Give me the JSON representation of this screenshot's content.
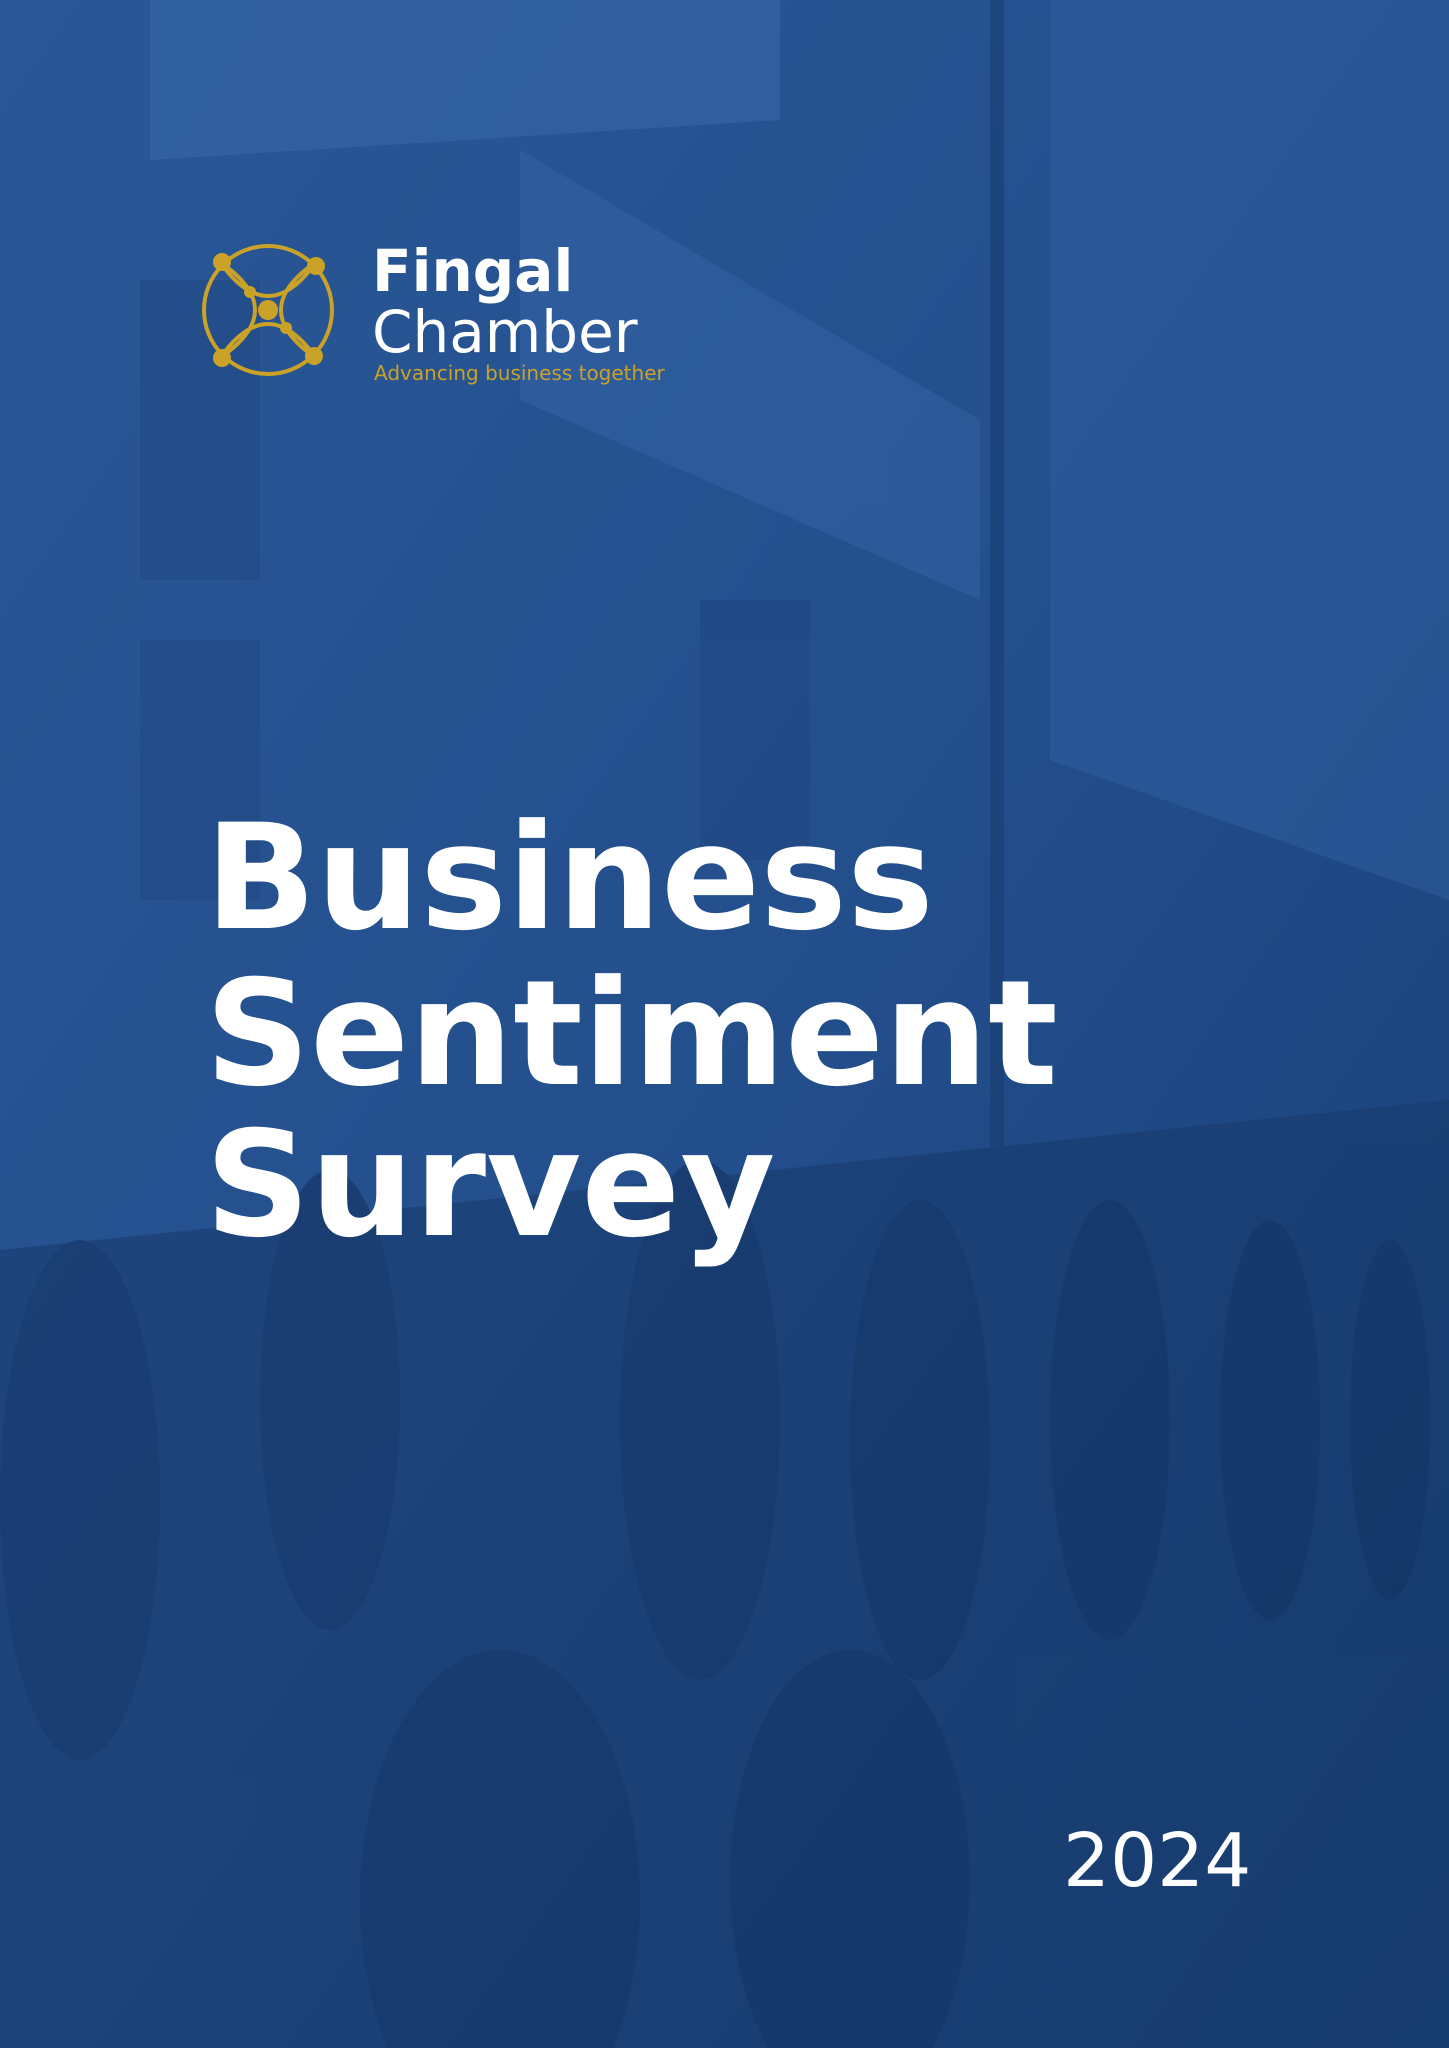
{
  "header": {
    "brand": [
      "Fingal",
      "Chamber"
    ],
    "tagline": "Advancing business together"
  },
  "title": [
    "Business",
    "Sentiment",
    "Survey"
  ],
  "year": "2024"
}
